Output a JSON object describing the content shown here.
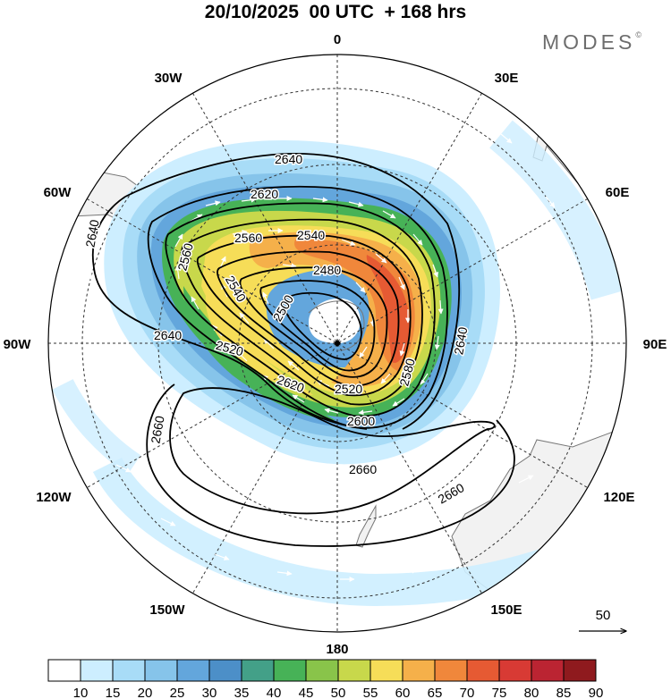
{
  "header": {
    "title": "20/10/2025  00 UTC  + 168 hrs",
    "logo": "MODES",
    "logo_mark": "©"
  },
  "map": {
    "projection": "south-polar-stereographic",
    "longitude_labels": {
      "top": "0",
      "top_right": "30E",
      "right_upper": "60E",
      "right": "90E",
      "right_lower": "120E",
      "bottom_right": "150E",
      "bottom": "180",
      "bottom_left": "150W",
      "left_lower": "120W",
      "left": "90W",
      "left_upper": "60W",
      "top_left": "30W"
    },
    "contour_labels": [
      "2640",
      "2620",
      "2560",
      "2540",
      "2480",
      "2560",
      "2540",
      "2500",
      "2640",
      "2640",
      "2520",
      "2620",
      "2520",
      "2600",
      "2660",
      "2660",
      "2660",
      "2580"
    ],
    "reference_vector_label": "50",
    "colors": {
      "ocean": "#ffffff",
      "land": "#f2f2f2",
      "coast": "#777777",
      "contour": "#000000"
    }
  },
  "colorbar": {
    "ticks": [
      "10",
      "15",
      "20",
      "25",
      "30",
      "35",
      "40",
      "45",
      "50",
      "55",
      "60",
      "65",
      "70",
      "75",
      "80",
      "85",
      "90"
    ],
    "colors": [
      "#ffffff",
      "#cdeeff",
      "#a8dcf7",
      "#86c4ea",
      "#63a6dc",
      "#4c8fc8",
      "#43a088",
      "#47b257",
      "#89c44a",
      "#c8d84b",
      "#f6dd58",
      "#f5b04a",
      "#f0873b",
      "#e65a33",
      "#d83a34",
      "#bb2432",
      "#8f1a1e"
    ]
  }
}
